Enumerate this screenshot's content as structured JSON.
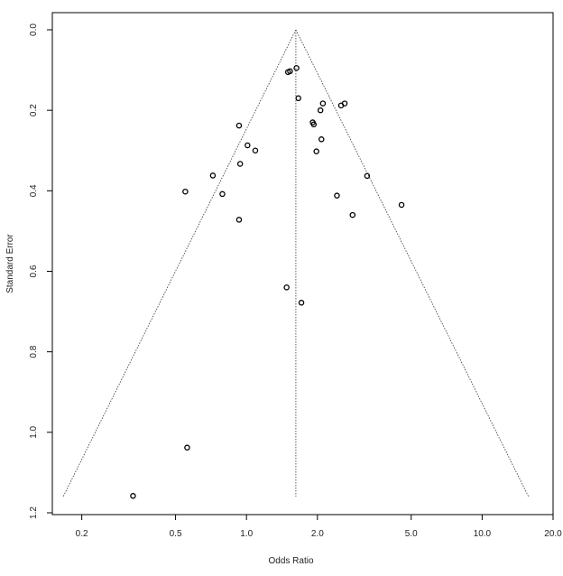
{
  "chart_data": {
    "type": "scatter",
    "title": "",
    "xlabel": "Odds Ratio",
    "ylabel": "Standard Error",
    "x_scale": "log",
    "x_ticks": [
      0.2,
      0.5,
      1.0,
      2.0,
      5.0,
      10.0,
      20.0
    ],
    "x_tick_labels": [
      "0.2",
      "0.5",
      "1.0",
      "2.0",
      "5.0",
      "10.0",
      "20.0"
    ],
    "xlim": [
      0.15,
      20.0
    ],
    "y_ticks": [
      0.0,
      0.2,
      0.4,
      0.6,
      0.8,
      1.0,
      1.2
    ],
    "y_tick_labels": [
      "0.0",
      "0.2",
      "0.4",
      "0.6",
      "0.8",
      "1.0",
      "1.2"
    ],
    "ylim": [
      1.2,
      0.0
    ],
    "y_inverted": true,
    "pooled_or": 1.62,
    "funnel_se_max": 1.16,
    "grid": false,
    "points": [
      {
        "x": 1.63,
        "y": 0.095
      },
      {
        "x": 1.5,
        "y": 0.105
      },
      {
        "x": 1.53,
        "y": 0.103
      },
      {
        "x": 1.66,
        "y": 0.17
      },
      {
        "x": 2.11,
        "y": 0.183
      },
      {
        "x": 2.61,
        "y": 0.183
      },
      {
        "x": 2.52,
        "y": 0.188
      },
      {
        "x": 2.06,
        "y": 0.2
      },
      {
        "x": 1.91,
        "y": 0.23
      },
      {
        "x": 1.93,
        "y": 0.235
      },
      {
        "x": 0.93,
        "y": 0.238
      },
      {
        "x": 2.08,
        "y": 0.272
      },
      {
        "x": 1.01,
        "y": 0.287
      },
      {
        "x": 1.09,
        "y": 0.3
      },
      {
        "x": 1.98,
        "y": 0.302
      },
      {
        "x": 0.94,
        "y": 0.333
      },
      {
        "x": 0.72,
        "y": 0.362
      },
      {
        "x": 3.25,
        "y": 0.363
      },
      {
        "x": 0.55,
        "y": 0.402
      },
      {
        "x": 0.79,
        "y": 0.408
      },
      {
        "x": 2.42,
        "y": 0.412
      },
      {
        "x": 4.55,
        "y": 0.435
      },
      {
        "x": 2.82,
        "y": 0.46
      },
      {
        "x": 0.93,
        "y": 0.472
      },
      {
        "x": 1.48,
        "y": 0.64
      },
      {
        "x": 1.71,
        "y": 0.678
      },
      {
        "x": 0.56,
        "y": 1.038
      },
      {
        "x": 0.33,
        "y": 1.158
      }
    ]
  }
}
